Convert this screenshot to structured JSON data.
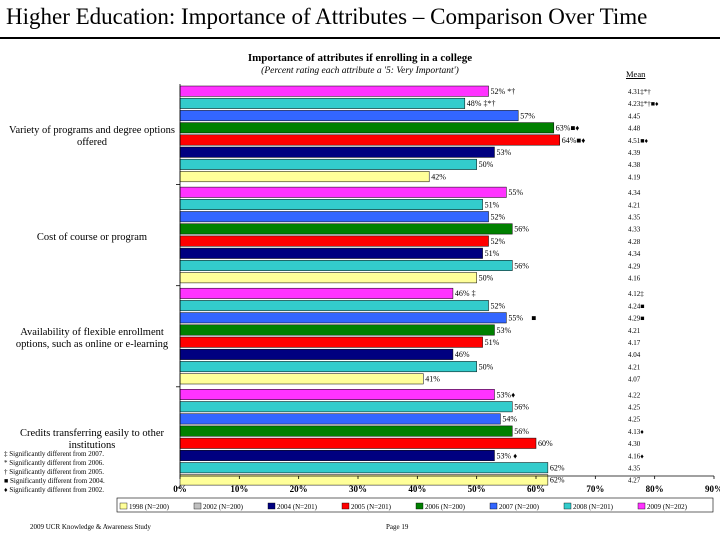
{
  "slide": {
    "title": "Higher Education:  Importance of Attributes – Comparison Over Time"
  },
  "footer": {
    "left": "2009 UCR Knowledge & Awareness Study",
    "center": "Page 19"
  },
  "chart_data": {
    "type": "bar",
    "orientation": "horizontal",
    "title": "Importance of attributes if enrolling in a college",
    "subtitle": "(Percent rating each attribute a '5: Very Important')",
    "mean_header": "Mean",
    "xlim": [
      0,
      90
    ],
    "x_ticks": [
      "0%",
      "10%",
      "20%",
      "30%",
      "40%",
      "50%",
      "60%",
      "70%",
      "80%",
      "90%"
    ],
    "grid": false,
    "legend_position": "bottom",
    "series": [
      {
        "name": "1998 (N=200)",
        "color": "#ffff99"
      },
      {
        "name": "2002 (N=200)",
        "color": "#c0c0c0"
      },
      {
        "name": "2004 (N=201)",
        "color": "#000080"
      },
      {
        "name": "2005 (N=201)",
        "color": "#ff0000"
      },
      {
        "name": "2006 (N=200)",
        "color": "#008000"
      },
      {
        "name": "2007 (N=200)",
        "color": "#3366ff"
      },
      {
        "name": "2008 (N=201)",
        "color": "#33cccc"
      },
      {
        "name": "2009 (N=202)",
        "color": "#ff33ff"
      }
    ],
    "categories": [
      {
        "label": "Variety of programs and degree options offered",
        "bars": [
          {
            "year": "2009",
            "value": 52,
            "label": "52% *†"
          },
          {
            "year": "2008",
            "value": 48,
            "label": "48% ‡*†"
          },
          {
            "year": "2007",
            "value": 57,
            "label": "57%"
          },
          {
            "year": "2006",
            "value": 63,
            "label": "63%■♦"
          },
          {
            "year": "2005",
            "value": 64,
            "label": "64%■♦"
          },
          {
            "year": "2004",
            "value": 53,
            "label": "53%"
          },
          {
            "year": "2008b",
            "value": 50,
            "label": "50%"
          },
          {
            "year": "1998",
            "value": 42,
            "label": "42%"
          }
        ],
        "means": [
          "4.31‡*†",
          "4.23‡*†■♦",
          "4.45",
          "4.48",
          "4.51■♦",
          "4.39",
          "4.38",
          "4.19"
        ]
      },
      {
        "label": "Cost of course or program",
        "bars": [
          {
            "year": "2009",
            "value": 55,
            "label": "55%"
          },
          {
            "year": "2008",
            "value": 51,
            "label": "51%"
          },
          {
            "year": "2007",
            "value": 52,
            "label": "52%"
          },
          {
            "year": "2006",
            "value": 56,
            "label": "56%"
          },
          {
            "year": "2005",
            "value": 52,
            "label": "52%"
          },
          {
            "year": "2004",
            "value": 51,
            "label": "51%"
          },
          {
            "year": "2008b",
            "value": 56,
            "label": "56%"
          },
          {
            "year": "1998",
            "value": 50,
            "label": "50%"
          }
        ],
        "means": [
          "4.34",
          "4.21",
          "4.35",
          "4.33",
          "4.28",
          "4.34",
          "4.29",
          "4.16"
        ]
      },
      {
        "label": "Availability of flexible enrollment options, such as online or e-learning",
        "bars": [
          {
            "year": "2009",
            "value": 46,
            "label": "46% ‡"
          },
          {
            "year": "2008",
            "value": 52,
            "label": "52%"
          },
          {
            "year": "2007",
            "value": 55,
            "label": "55%"
          },
          {
            "year": "2006",
            "value": 53,
            "label": "53%"
          },
          {
            "year": "2005",
            "value": 51,
            "label": "51%"
          },
          {
            "year": "2004",
            "value": 46,
            "label": "46%"
          },
          {
            "year": "2008b",
            "value": 50,
            "label": "50%"
          },
          {
            "year": "1998",
            "value": 41,
            "label": "41%"
          }
        ],
        "extra_mark": "■",
        "means": [
          "4.12‡",
          "4.24■",
          "4.29■",
          "4.21",
          "4.17",
          "4.04",
          "4.21",
          "4.07"
        ]
      },
      {
        "label": "Credits transferring easily to other institutions",
        "bars": [
          {
            "year": "2009",
            "value": 53,
            "label": "53%♦"
          },
          {
            "year": "2008",
            "value": 56,
            "label": "56%"
          },
          {
            "year": "2007",
            "value": 54,
            "label": "54%"
          },
          {
            "year": "2006",
            "value": 56,
            "label": "56%"
          },
          {
            "year": "2005",
            "value": 60,
            "label": "60%"
          },
          {
            "year": "2004",
            "value": 53,
            "label": "53% ♦"
          },
          {
            "year": "2008b",
            "value": 62,
            "label": "62%"
          },
          {
            "year": "1998",
            "value": 62,
            "label": "62%"
          }
        ],
        "means": [
          "4.22",
          "4.25",
          "4.25",
          "4.13♦",
          "4.30",
          "4.16♦",
          "4.35",
          "4.27"
        ]
      }
    ]
  },
  "notes": [
    "‡ Significantly different from 2007.",
    "* Significantly different from 2006.",
    "† Significantly different from 2005.",
    "■ Significantly different from 2004.",
    "♦ Significantly different from 2002."
  ]
}
